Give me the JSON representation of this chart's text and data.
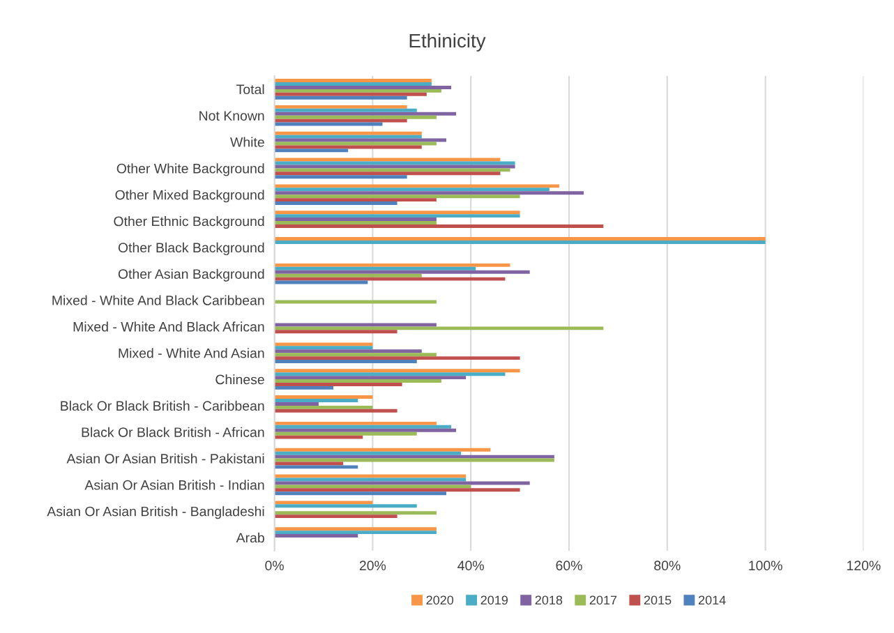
{
  "chart_data": {
    "type": "bar",
    "orientation": "horizontal",
    "title": "Ethinicity",
    "categories": [
      "Total",
      "Not Known",
      "White",
      "Other White Background",
      "Other Mixed Background",
      "Other Ethnic Background",
      "Other Black Background",
      "Other Asian Background",
      "Mixed - White And Black Caribbean",
      "Mixed - White And Black African",
      "Mixed - White And Asian",
      "Chinese",
      "Black Or Black British - Caribbean",
      "Black Or Black British - African",
      "Asian Or Asian British - Pakistani",
      "Asian Or Asian British - Indian",
      "Asian Or Asian British - Bangladeshi",
      "Arab"
    ],
    "series": [
      {
        "name": "2020",
        "color": "#f79646",
        "values": [
          32,
          27,
          30,
          46,
          58,
          50,
          100,
          48,
          null,
          null,
          20,
          50,
          20,
          33,
          44,
          39,
          20,
          33
        ]
      },
      {
        "name": "2019",
        "color": "#4bacc6",
        "values": [
          32,
          29,
          30,
          49,
          56,
          50,
          100,
          41,
          null,
          null,
          20,
          47,
          17,
          36,
          38,
          39,
          29,
          33
        ]
      },
      {
        "name": "2018",
        "color": "#8064a2",
        "values": [
          36,
          37,
          35,
          49,
          63,
          33,
          null,
          52,
          null,
          33,
          30,
          39,
          9,
          37,
          57,
          52,
          null,
          17
        ]
      },
      {
        "name": "2017",
        "color": "#9bbb59",
        "values": [
          34,
          33,
          33,
          48,
          50,
          33,
          null,
          30,
          33,
          67,
          33,
          34,
          20,
          29,
          57,
          40,
          33,
          null
        ]
      },
      {
        "name": "2015",
        "color": "#c0504d",
        "values": [
          31,
          27,
          30,
          46,
          33,
          67,
          null,
          47,
          null,
          25,
          50,
          26,
          25,
          18,
          14,
          50,
          25,
          null
        ]
      },
      {
        "name": "2014",
        "color": "#4f81bd",
        "values": [
          27,
          22,
          15,
          27,
          25,
          null,
          null,
          19,
          null,
          null,
          29,
          12,
          null,
          null,
          17,
          35,
          null,
          null
        ]
      }
    ],
    "xlim": [
      0,
      120
    ],
    "xticks": [
      {
        "value": 0,
        "label": "0%"
      },
      {
        "value": 20,
        "label": "20%"
      },
      {
        "value": 40,
        "label": "40%"
      },
      {
        "value": 60,
        "label": "60%"
      },
      {
        "value": 80,
        "label": "80%"
      },
      {
        "value": 100,
        "label": "100%"
      },
      {
        "value": 120,
        "label": "120%"
      }
    ],
    "grid": "x",
    "legend": "bottom"
  }
}
